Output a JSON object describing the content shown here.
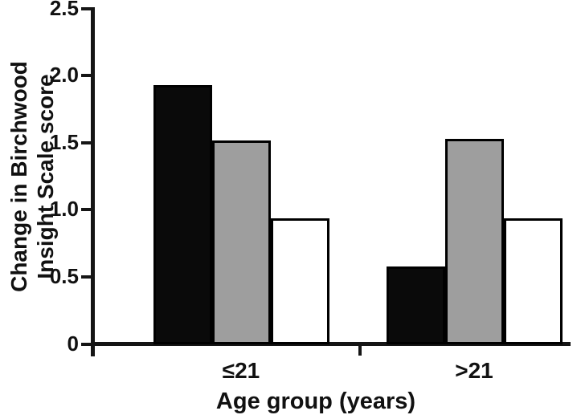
{
  "chart_data": {
    "type": "bar",
    "title": "",
    "categories": [
      "≤21",
      ">21"
    ],
    "series": [
      {
        "name": "black",
        "color": "#0a0a0a",
        "border": "#000000",
        "values": [
          1.93,
          0.58
        ]
      },
      {
        "name": "grey",
        "color": "#9e9e9e",
        "border": "#000000",
        "values": [
          1.52,
          1.53
        ]
      },
      {
        "name": "white",
        "color": "#ffffff",
        "border": "#000000",
        "values": [
          0.94,
          0.94
        ]
      }
    ],
    "xlabel": "Age group (years)",
    "ylabel": "Change in Birchwood Insight Scale score",
    "ylabel_lines": [
      "Change in Birchwood",
      "Insight Scale score"
    ],
    "ylim": [
      0,
      2.5
    ],
    "yticks": [
      0,
      0.5,
      1.0,
      1.5,
      2.0,
      2.5
    ],
    "ytick_labels": [
      "0",
      "0.5",
      "1.0",
      "1.5",
      "2.0",
      "2.5"
    ],
    "grid": false,
    "legend": "none",
    "axis_color": "#151515",
    "background": "#ffffff"
  }
}
